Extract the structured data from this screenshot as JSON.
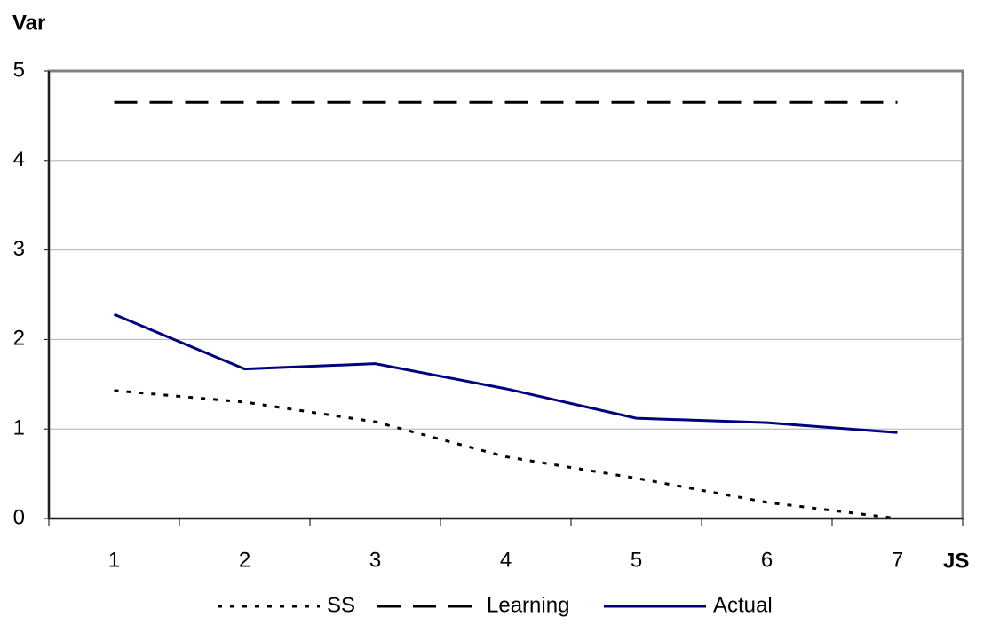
{
  "chart_data": {
    "type": "line",
    "y_label": "Var",
    "x_label": "JS",
    "categories": [
      "1",
      "2",
      "3",
      "4",
      "5",
      "6",
      "7"
    ],
    "series": [
      {
        "name": "SS",
        "color": "#000000",
        "dash": "dotted",
        "values": [
          1.43,
          1.3,
          1.08,
          0.69,
          0.45,
          0.18,
          0
        ]
      },
      {
        "name": "Learning",
        "color": "#000000",
        "dash": "dashed",
        "values": [
          4.65,
          4.65,
          4.65,
          4.65,
          4.65,
          4.65,
          4.65
        ]
      },
      {
        "name": "Actual",
        "color": "#000080",
        "dash": "solid",
        "values": [
          2.28,
          1.67,
          1.73,
          1.45,
          1.12,
          1.07,
          0.96
        ]
      }
    ],
    "ylim": [
      0,
      5
    ],
    "yticks": [
      0,
      1,
      2,
      3,
      4,
      5
    ],
    "grid": true,
    "legend": "bottom"
  }
}
